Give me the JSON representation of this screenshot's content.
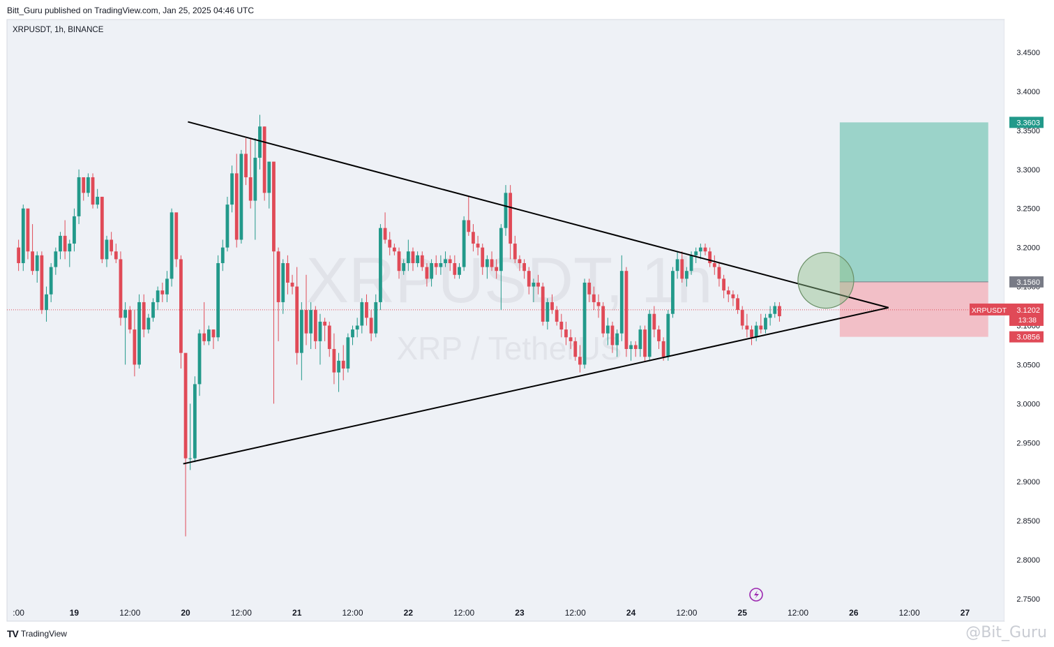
{
  "header": {
    "publish_line": "Bitt_Guru published on TradingView.com, Jan 25, 2025 04:46 UTC"
  },
  "chart_header": {
    "symbol_line": "XRPUSDT, 1h, BINANCE"
  },
  "watermark": {
    "line1": "XRPUSDT, 1h",
    "line2": "XRP / TetherUS"
  },
  "footer": {
    "brand": "TradingView",
    "brand_mark": "TV",
    "user_watermark": "@Bit_Guru"
  },
  "colors": {
    "up": "#22998a",
    "down": "#e04a57",
    "target_zone": "#7fc8b9",
    "stop_zone": "#f2b6be",
    "price_line": "#e04a57"
  },
  "chart_data": {
    "type": "candlestick",
    "symbol": "XRPUSDT",
    "interval": "1h",
    "exchange": "BINANCE",
    "ylim": [
      2.72,
      3.49
    ],
    "y_ticks": [
      "3.4500",
      "3.4000",
      "3.3500",
      "3.3000",
      "3.2500",
      "3.2000",
      "3.1500",
      "3.1000",
      "3.0500",
      "3.0000",
      "2.9500",
      "2.9000",
      "2.8500",
      "2.8000",
      "2.7500"
    ],
    "x_ticks": [
      ":00",
      "19",
      "12:00",
      "20",
      "12:00",
      "21",
      "12:00",
      "22",
      "12:00",
      "23",
      "12:00",
      "24",
      "12:00",
      "25",
      "12:00",
      "26",
      "12:00",
      "27"
    ],
    "x_tick_hours": [
      0,
      12,
      24,
      36,
      48,
      60,
      72,
      84,
      96,
      108,
      120,
      132,
      144,
      156,
      168,
      180,
      192,
      204
    ],
    "time_hours": [
      -2.5,
      212.5
    ],
    "price_labels": [
      {
        "name": "target",
        "text": "3.3603",
        "value": 3.3603,
        "color": "#22998a"
      },
      {
        "name": "entry",
        "text": "3.1560",
        "value": 3.156,
        "color": "#787b86"
      },
      {
        "name": "current",
        "text": "3.1202",
        "value": 3.1202,
        "color": "#e04a57",
        "symbol": "XRPUSDT",
        "countdown": "13:38"
      },
      {
        "name": "stop",
        "text": "3.0856",
        "value": 3.0856,
        "color": "#e04a57"
      }
    ],
    "position": {
      "entry": 3.156,
      "target": 3.3603,
      "stop": 3.0856,
      "start_hour": 177,
      "end_hour": 209
    },
    "trendlines": [
      {
        "name": "upper-trendline",
        "points": [
          [
            36.5,
            3.361
          ],
          [
            187.5,
            3.123
          ]
        ]
      },
      {
        "name": "lower-trendline",
        "points": [
          [
            35.5,
            2.923
          ],
          [
            187.5,
            3.123
          ]
        ]
      }
    ],
    "highlight_circle": {
      "hour": 174,
      "value": 3.158
    },
    "candles": [
      [
        3.2,
        3.21,
        3.17,
        3.18
      ],
      [
        3.18,
        3.255,
        3.17,
        3.25
      ],
      [
        3.25,
        3.245,
        3.185,
        3.195
      ],
      [
        3.195,
        3.23,
        3.165,
        3.17
      ],
      [
        3.17,
        3.195,
        3.155,
        3.19
      ],
      [
        3.19,
        3.195,
        3.115,
        3.12
      ],
      [
        3.12,
        3.15,
        3.105,
        3.14
      ],
      [
        3.14,
        3.18,
        3.13,
        3.175
      ],
      [
        3.175,
        3.2,
        3.165,
        3.195
      ],
      [
        3.195,
        3.22,
        3.185,
        3.215
      ],
      [
        3.215,
        3.235,
        3.185,
        3.195
      ],
      [
        3.195,
        3.21,
        3.175,
        3.205
      ],
      [
        3.205,
        3.25,
        3.195,
        3.24
      ],
      [
        3.24,
        3.3,
        3.23,
        3.29
      ],
      [
        3.29,
        3.285,
        3.26,
        3.27
      ],
      [
        3.27,
        3.295,
        3.265,
        3.29
      ],
      [
        3.29,
        3.295,
        3.25,
        3.255
      ],
      [
        3.255,
        3.275,
        3.25,
        3.265
      ],
      [
        3.265,
        3.265,
        3.18,
        3.185
      ],
      [
        3.185,
        3.215,
        3.175,
        3.21
      ],
      [
        3.21,
        3.22,
        3.19,
        3.195
      ],
      [
        3.195,
        3.205,
        3.18,
        3.185
      ],
      [
        3.185,
        3.195,
        3.1,
        3.11
      ],
      [
        3.11,
        3.13,
        3.05,
        3.12
      ],
      [
        3.12,
        3.125,
        3.09,
        3.095
      ],
      [
        3.095,
        3.12,
        3.035,
        3.05
      ],
      [
        3.05,
        3.14,
        3.045,
        3.13
      ],
      [
        3.13,
        3.14,
        3.085,
        3.095
      ],
      [
        3.095,
        3.115,
        3.09,
        3.11
      ],
      [
        3.11,
        3.135,
        3.105,
        3.13
      ],
      [
        3.13,
        3.15,
        3.12,
        3.145
      ],
      [
        3.145,
        3.155,
        3.13,
        3.14
      ],
      [
        3.14,
        3.17,
        3.13,
        3.16
      ],
      [
        3.16,
        3.25,
        3.15,
        3.245
      ],
      [
        3.245,
        3.24,
        3.175,
        3.185
      ],
      [
        3.185,
        3.19,
        3.045,
        3.065
      ],
      [
        3.065,
        3.06,
        2.83,
        2.93
      ],
      [
        2.93,
        3.0,
        2.915,
        2.93
      ],
      [
        2.93,
        3.035,
        2.925,
        3.025
      ],
      [
        3.025,
        3.095,
        3.01,
        3.09
      ],
      [
        3.09,
        3.13,
        3.075,
        3.08
      ],
      [
        3.08,
        3.1,
        3.075,
        3.095
      ],
      [
        3.095,
        3.095,
        3.07,
        3.085
      ],
      [
        3.085,
        3.19,
        3.08,
        3.18
      ],
      [
        3.18,
        3.21,
        3.17,
        3.2
      ],
      [
        3.2,
        3.265,
        3.195,
        3.255
      ],
      [
        3.255,
        3.305,
        3.245,
        3.295
      ],
      [
        3.295,
        3.32,
        3.2,
        3.21
      ],
      [
        3.21,
        3.325,
        3.205,
        3.32
      ],
      [
        3.32,
        3.34,
        3.28,
        3.29
      ],
      [
        3.29,
        3.34,
        3.25,
        3.26
      ],
      [
        3.26,
        3.34,
        3.21,
        3.315
      ],
      [
        3.315,
        3.37,
        3.3,
        3.355
      ],
      [
        3.355,
        3.355,
        3.26,
        3.27
      ],
      [
        3.27,
        3.31,
        3.25,
        3.31
      ],
      [
        3.31,
        3.31,
        3.0,
        3.195
      ],
      [
        3.195,
        3.2,
        3.08,
        3.13
      ],
      [
        3.13,
        3.185,
        3.115,
        3.18
      ],
      [
        3.18,
        3.19,
        3.14,
        3.155
      ],
      [
        3.155,
        3.165,
        3.14,
        3.15
      ],
      [
        3.15,
        3.175,
        3.05,
        3.065
      ],
      [
        3.065,
        3.13,
        3.03,
        3.12
      ],
      [
        3.12,
        3.165,
        3.075,
        3.09
      ],
      [
        3.09,
        3.13,
        3.07,
        3.12
      ],
      [
        3.12,
        3.125,
        3.07,
        3.08
      ],
      [
        3.08,
        3.115,
        3.05,
        3.105
      ],
      [
        3.105,
        3.11,
        3.08,
        3.1
      ],
      [
        3.1,
        3.105,
        3.06,
        3.07
      ],
      [
        3.07,
        3.09,
        3.025,
        3.04
      ],
      [
        3.04,
        3.065,
        3.015,
        3.055
      ],
      [
        3.055,
        3.075,
        3.03,
        3.045
      ],
      [
        3.045,
        3.09,
        3.04,
        3.085
      ],
      [
        3.085,
        3.1,
        3.075,
        3.095
      ],
      [
        3.095,
        3.11,
        3.085,
        3.1
      ],
      [
        3.1,
        3.135,
        3.09,
        3.13
      ],
      [
        3.13,
        3.14,
        3.1,
        3.11
      ],
      [
        3.11,
        3.12,
        3.08,
        3.09
      ],
      [
        3.09,
        3.14,
        3.085,
        3.13
      ],
      [
        3.13,
        3.23,
        3.12,
        3.225
      ],
      [
        3.225,
        3.245,
        3.205,
        3.21
      ],
      [
        3.21,
        3.22,
        3.19,
        3.2
      ],
      [
        3.2,
        3.205,
        3.19,
        3.195
      ],
      [
        3.195,
        3.2,
        3.16,
        3.17
      ],
      [
        3.17,
        3.185,
        3.165,
        3.18
      ],
      [
        3.18,
        3.21,
        3.17,
        3.195
      ],
      [
        3.195,
        3.2,
        3.17,
        3.18
      ],
      [
        3.18,
        3.195,
        3.175,
        3.19
      ],
      [
        3.19,
        3.195,
        3.17,
        3.175
      ],
      [
        3.175,
        3.18,
        3.15,
        3.16
      ],
      [
        3.16,
        3.185,
        3.15,
        3.18
      ],
      [
        3.18,
        3.19,
        3.165,
        3.175
      ],
      [
        3.175,
        3.19,
        3.165,
        3.18
      ],
      [
        3.18,
        3.195,
        3.175,
        3.185
      ],
      [
        3.185,
        3.19,
        3.17,
        3.18
      ],
      [
        3.18,
        3.19,
        3.16,
        3.165
      ],
      [
        3.165,
        3.18,
        3.16,
        3.175
      ],
      [
        3.175,
        3.24,
        3.17,
        3.235
      ],
      [
        3.235,
        3.265,
        3.215,
        3.22
      ],
      [
        3.22,
        3.23,
        3.195,
        3.205
      ],
      [
        3.205,
        3.215,
        3.19,
        3.2
      ],
      [
        3.2,
        3.205,
        3.165,
        3.175
      ],
      [
        3.175,
        3.19,
        3.16,
        3.185
      ],
      [
        3.185,
        3.195,
        3.17,
        3.175
      ],
      [
        3.175,
        3.185,
        3.16,
        3.17
      ],
      [
        3.17,
        3.23,
        3.12,
        3.225
      ],
      [
        3.225,
        3.28,
        3.215,
        3.27
      ],
      [
        3.27,
        3.28,
        3.185,
        3.205
      ],
      [
        3.205,
        3.215,
        3.18,
        3.185
      ],
      [
        3.185,
        3.19,
        3.17,
        3.18
      ],
      [
        3.18,
        3.185,
        3.16,
        3.17
      ],
      [
        3.17,
        3.175,
        3.14,
        3.15
      ],
      [
        3.15,
        3.16,
        3.13,
        3.155
      ],
      [
        3.155,
        3.165,
        3.14,
        3.15
      ],
      [
        3.15,
        3.155,
        3.1,
        3.105
      ],
      [
        3.105,
        3.135,
        3.095,
        3.13
      ],
      [
        3.13,
        3.14,
        3.115,
        3.12
      ],
      [
        3.12,
        3.125,
        3.1,
        3.105
      ],
      [
        3.105,
        3.115,
        3.085,
        3.095
      ],
      [
        3.095,
        3.105,
        3.075,
        3.085
      ],
      [
        3.085,
        3.095,
        3.07,
        3.08
      ],
      [
        3.08,
        3.085,
        3.055,
        3.06
      ],
      [
        3.06,
        3.075,
        3.04,
        3.05
      ],
      [
        3.05,
        3.16,
        3.045,
        3.155
      ],
      [
        3.155,
        3.16,
        3.13,
        3.14
      ],
      [
        3.14,
        3.15,
        3.12,
        3.13
      ],
      [
        3.13,
        3.14,
        3.11,
        3.125
      ],
      [
        3.125,
        3.13,
        3.085,
        3.09
      ],
      [
        3.09,
        3.11,
        3.075,
        3.1
      ],
      [
        3.1,
        3.105,
        3.065,
        3.075
      ],
      [
        3.075,
        3.095,
        3.06,
        3.09
      ],
      [
        3.09,
        3.19,
        3.08,
        3.17
      ],
      [
        3.17,
        3.175,
        3.06,
        3.07
      ],
      [
        3.07,
        3.08,
        3.055,
        3.075
      ],
      [
        3.075,
        3.08,
        3.06,
        3.07
      ],
      [
        3.07,
        3.1,
        3.06,
        3.095
      ],
      [
        3.095,
        3.1,
        3.055,
        3.06
      ],
      [
        3.06,
        3.12,
        3.055,
        3.115
      ],
      [
        3.115,
        3.125,
        3.085,
        3.095
      ],
      [
        3.095,
        3.1,
        3.07,
        3.08
      ],
      [
        3.08,
        3.085,
        3.055,
        3.06
      ],
      [
        3.06,
        3.12,
        3.055,
        3.115
      ],
      [
        3.115,
        3.175,
        3.11,
        3.17
      ],
      [
        3.17,
        3.195,
        3.16,
        3.185
      ],
      [
        3.185,
        3.195,
        3.155,
        3.16
      ],
      [
        3.16,
        3.175,
        3.15,
        3.17
      ],
      [
        3.17,
        3.195,
        3.165,
        3.19
      ],
      [
        3.19,
        3.2,
        3.18,
        3.195
      ],
      [
        3.195,
        3.205,
        3.185,
        3.2
      ],
      [
        3.2,
        3.205,
        3.19,
        3.195
      ],
      [
        3.195,
        3.2,
        3.175,
        3.18
      ],
      [
        3.18,
        3.19,
        3.165,
        3.175
      ],
      [
        3.175,
        3.18,
        3.15,
        3.16
      ],
      [
        3.16,
        3.165,
        3.135,
        3.145
      ],
      [
        3.145,
        3.15,
        3.13,
        3.14
      ],
      [
        3.14,
        3.145,
        3.125,
        3.135
      ],
      [
        3.135,
        3.14,
        3.115,
        3.12
      ],
      [
        3.12,
        3.125,
        3.095,
        3.1
      ],
      [
        3.1,
        3.115,
        3.085,
        3.095
      ],
      [
        3.095,
        3.1,
        3.075,
        3.085
      ],
      [
        3.085,
        3.105,
        3.08,
        3.1
      ],
      [
        3.1,
        3.115,
        3.09,
        3.095
      ],
      [
        3.095,
        3.115,
        3.09,
        3.11
      ],
      [
        3.11,
        3.125,
        3.1,
        3.115
      ],
      [
        3.115,
        3.13,
        3.11,
        3.125
      ],
      [
        3.125,
        3.13,
        3.105,
        3.112
      ]
    ]
  }
}
